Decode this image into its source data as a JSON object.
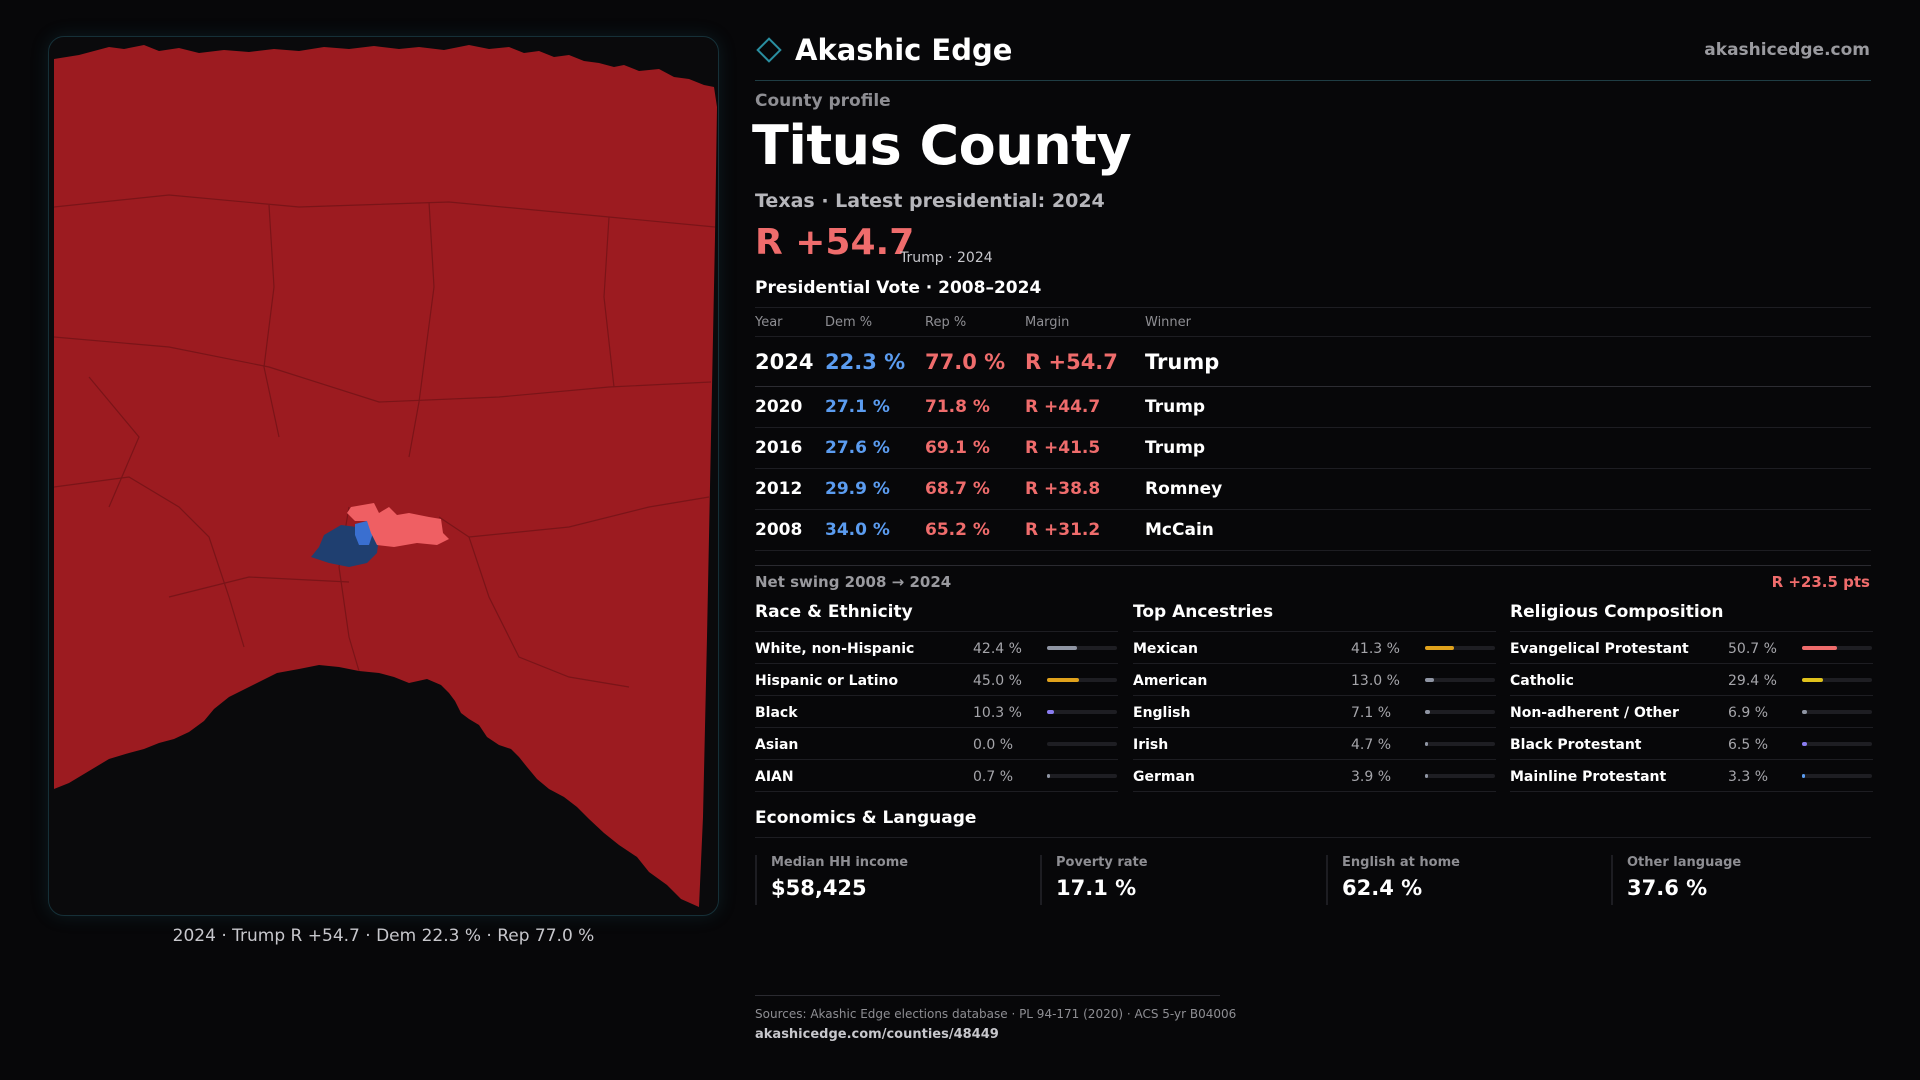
{
  "brand": {
    "name": "Akashic Edge",
    "site": "akashicedge.com"
  },
  "profile": {
    "label": "County profile",
    "county": "Titus County",
    "subtitle": "Texas · Latest presidential: 2024",
    "headline_margin": "R +54.7",
    "headline_note": "Trump · 2024",
    "vote_title": "Presidential Vote · 2008–2024"
  },
  "vote_table": {
    "headers": [
      "Year",
      "Dem %",
      "Rep %",
      "Margin",
      "Winner"
    ],
    "rows": [
      {
        "year": "2024",
        "dem": "22.3 %",
        "rep": "77.0 %",
        "margin": "R +54.7",
        "winner": "Trump"
      },
      {
        "year": "2020",
        "dem": "27.1 %",
        "rep": "71.8 %",
        "margin": "R +44.7",
        "winner": "Trump"
      },
      {
        "year": "2016",
        "dem": "27.6 %",
        "rep": "69.1 %",
        "margin": "R +41.5",
        "winner": "Trump"
      },
      {
        "year": "2012",
        "dem": "29.9 %",
        "rep": "68.7 %",
        "margin": "R +38.8",
        "winner": "Romney"
      },
      {
        "year": "2008",
        "dem": "34.0 %",
        "rep": "65.2 %",
        "margin": "R +31.2",
        "winner": "McCain"
      }
    ],
    "swing_label": "Net swing 2008 → 2024",
    "swing_value": "R +23.5 pts"
  },
  "race": {
    "title": "Race & Ethnicity",
    "rows": [
      {
        "name": "White, non-Hispanic",
        "pct": "42.4 %",
        "value": 42.4,
        "color": "#8f95a3"
      },
      {
        "name": "Hispanic or Latino",
        "pct": "45.0 %",
        "value": 45.0,
        "color": "#e0a21c"
      },
      {
        "name": "Black",
        "pct": "10.3 %",
        "value": 10.3,
        "color": "#8a7cf0"
      },
      {
        "name": "Asian",
        "pct": "0.0 %",
        "value": 0.0,
        "color": "#5b9cf0"
      },
      {
        "name": "AIAN",
        "pct": "0.7 %",
        "value": 0.7,
        "color": "#8f95a3"
      }
    ]
  },
  "ancestry": {
    "title": "Top Ancestries",
    "rows": [
      {
        "name": "Mexican",
        "pct": "41.3 %",
        "value": 41.3,
        "color": "#e0a21c"
      },
      {
        "name": "American",
        "pct": "13.0 %",
        "value": 13.0,
        "color": "#8f95a3"
      },
      {
        "name": "English",
        "pct": "7.1 %",
        "value": 7.1,
        "color": "#8f95a3"
      },
      {
        "name": "Irish",
        "pct": "4.7 %",
        "value": 4.7,
        "color": "#8f95a3"
      },
      {
        "name": "German",
        "pct": "3.9 %",
        "value": 3.9,
        "color": "#8f95a3"
      }
    ]
  },
  "religion": {
    "title": "Religious Composition",
    "rows": [
      {
        "name": "Evangelical Protestant",
        "pct": "50.7 %",
        "value": 50.7,
        "color": "#ef6c6c"
      },
      {
        "name": "Catholic",
        "pct": "29.4 %",
        "value": 29.4,
        "color": "#e0c21c"
      },
      {
        "name": "Non-adherent / Other",
        "pct": "6.9 %",
        "value": 6.9,
        "color": "#8f95a3"
      },
      {
        "name": "Black Protestant",
        "pct": "6.5 %",
        "value": 6.5,
        "color": "#8a7cf0"
      },
      {
        "name": "Mainline Protestant",
        "pct": "3.3 %",
        "value": 3.3,
        "color": "#5b9cf0"
      }
    ]
  },
  "economics": {
    "title": "Economics & Language",
    "cards": [
      {
        "label": "Median HH income",
        "value": "$58,425"
      },
      {
        "label": "Poverty rate",
        "value": "17.1 %"
      },
      {
        "label": "English at home",
        "value": "62.4 %"
      },
      {
        "label": "Other language",
        "value": "37.6 %"
      }
    ]
  },
  "map": {
    "caption": "2024 · Trump R +54.7 · Dem 22.3 % · Rep 77.0 %",
    "colors": {
      "rep": "#9c1b20",
      "rep_light": "#ef5f63",
      "dem": "#1f3f70",
      "dem_light": "#3a6fd0"
    }
  },
  "footer": {
    "sources": "Sources: Akashic Edge elections database · PL 94-171 (2020) · ACS 5-yr B04006",
    "url": "akashicedge.com/counties/48449"
  }
}
